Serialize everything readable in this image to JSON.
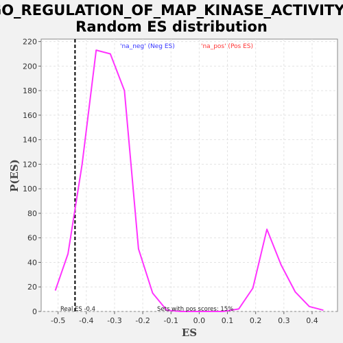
{
  "chart_data": {
    "type": "line",
    "title": "GO_REGULATION_OF_MAP_KINASE_ACTIVITY:",
    "subtitle": "Random ES distribution",
    "xlabel": "ES",
    "ylabel": "P(ES)",
    "xlim": [
      -0.56,
      0.49
    ],
    "ylim": [
      0,
      222
    ],
    "xticks": [
      -0.5,
      -0.4,
      -0.3,
      -0.2,
      -0.1,
      0.0,
      0.1,
      0.2,
      0.3,
      0.4
    ],
    "xtick_labels": [
      "-0.5",
      "-0.4",
      "-0.3",
      "-0.2",
      "-0.1",
      "0.0",
      "0.1",
      "0.2",
      "0.3",
      "0.4"
    ],
    "yticks": [
      0,
      20,
      40,
      60,
      80,
      100,
      120,
      140,
      160,
      180,
      200,
      220
    ],
    "ytick_labels": [
      "0",
      "20",
      "40",
      "60",
      "80",
      "100",
      "120",
      "140",
      "160",
      "180",
      "200",
      "220"
    ],
    "grid": true,
    "series": [
      {
        "color": "#ff33ff",
        "x": [
          -0.51,
          -0.465,
          -0.415,
          -0.365,
          -0.315,
          -0.265,
          -0.215,
          -0.165,
          -0.115,
          -0.065,
          -0.015,
          0.035,
          0.085,
          0.14,
          0.19,
          0.24,
          0.29,
          0.34,
          0.39,
          0.44
        ],
        "y": [
          17,
          47,
          120,
          213,
          210,
          180,
          51,
          15,
          1,
          0,
          0,
          0,
          0,
          2,
          19,
          67,
          38,
          16,
          4,
          1
        ]
      }
    ],
    "real_es_line": {
      "x": -0.44,
      "color": "#000000",
      "style": "dashed"
    },
    "legend": [
      {
        "label": "'na_neg' (Neg ES)",
        "color": "#3333ff"
      },
      {
        "label": "'na_pos' (Pos ES)",
        "color": "#ff3333"
      }
    ],
    "legend_placement": "top-center",
    "annotations": {
      "real_es": "Real ES -0.4",
      "pos_scores": "Sets with pos scores: 15%"
    }
  }
}
